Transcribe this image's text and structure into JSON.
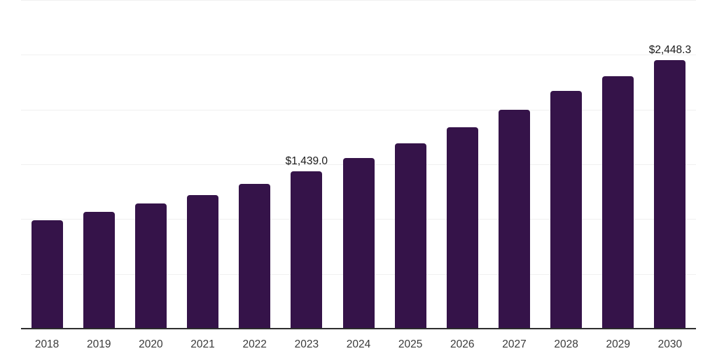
{
  "colors": {
    "bar": "#351349",
    "gridline": "#f0f0f0",
    "axis": "#2e2e2e",
    "tick_text": "#3a3a3a",
    "annotation_text": "#1a1a1a",
    "background": "#ffffff"
  },
  "chart_data": {
    "type": "bar",
    "title": "",
    "xlabel": "",
    "ylabel": "",
    "categories": [
      "2018",
      "2019",
      "2020",
      "2021",
      "2022",
      "2023",
      "2024",
      "2025",
      "2026",
      "2027",
      "2028",
      "2029",
      "2030"
    ],
    "values": [
      988,
      1068,
      1142,
      1221,
      1322,
      1439.0,
      1558,
      1692,
      1837,
      1999,
      2172,
      2306,
      2448.3
    ],
    "ylim": [
      0,
      3000
    ],
    "grid": true,
    "grid_step": 500,
    "legend_position": "none",
    "annotations": [
      {
        "category_index": 5,
        "text": "$1,439.0"
      },
      {
        "category_index": 12,
        "text": "$2,448.3"
      }
    ]
  }
}
